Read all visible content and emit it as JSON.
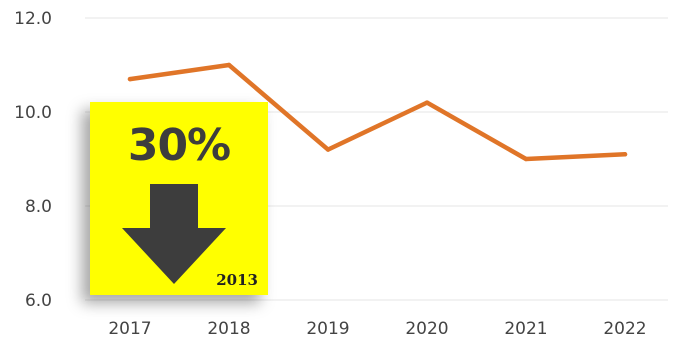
{
  "chart_data": {
    "type": "line",
    "title": "",
    "xlabel": "",
    "ylabel": "",
    "categories": [
      "2017",
      "2018",
      "2019",
      "2020",
      "2021",
      "2022"
    ],
    "series": [
      {
        "values": [
          10.7,
          11.0,
          9.2,
          10.2,
          9.0,
          9.1
        ]
      }
    ],
    "ylim": [
      6.0,
      12.0
    ],
    "yticks": [
      "6.0",
      "8.0",
      "10.0",
      "12.0"
    ],
    "grid": true,
    "legend": "none",
    "colors": {
      "series": "#e07528",
      "grid": "#e6e6e6",
      "tick_text": "#444444"
    }
  },
  "callout": {
    "percent_text": "30%",
    "year_text": "2013",
    "icon": "down-arrow-icon",
    "background_color": "#ffff00",
    "arrow_color": "#3d3d3d"
  }
}
